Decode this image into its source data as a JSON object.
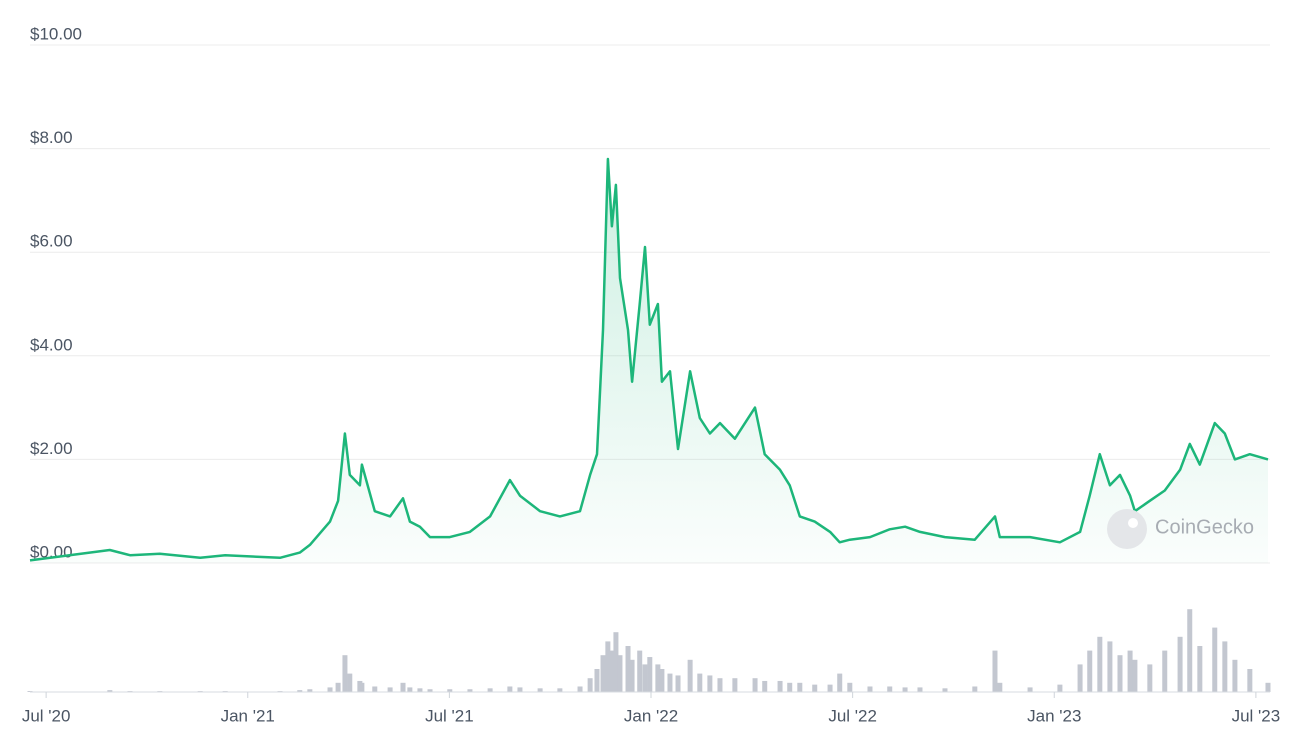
{
  "chart_data": {
    "type": "line",
    "watermark": "CoinGecko",
    "x": [
      2020.46,
      2020.658,
      2020.708,
      2020.782,
      2020.882,
      2020.944,
      2021.08,
      2021.129,
      2021.154,
      2021.204,
      2021.224,
      2021.241,
      2021.253,
      2021.278,
      2021.283,
      2021.315,
      2021.353,
      2021.385,
      2021.402,
      2021.427,
      2021.452,
      2021.501,
      2021.551,
      2021.601,
      2021.65,
      2021.675,
      2021.725,
      2021.774,
      2021.824,
      2021.849,
      2021.866,
      2021.881,
      2021.893,
      2021.903,
      2021.913,
      2021.923,
      2021.943,
      2021.953,
      2021.972,
      2021.985,
      2021.997,
      2022.017,
      2022.027,
      2022.047,
      2022.067,
      2022.097,
      2022.121,
      2022.146,
      2022.171,
      2022.208,
      2022.258,
      2022.282,
      2022.32,
      2022.344,
      2022.369,
      2022.406,
      2022.444,
      2022.468,
      2022.493,
      2022.543,
      2022.592,
      2022.63,
      2022.667,
      2022.729,
      2022.803,
      2022.853,
      2022.865,
      2022.94,
      2023.014,
      2023.064,
      2023.088,
      2023.113,
      2023.138,
      2023.163,
      2023.188,
      2023.2,
      2023.237,
      2023.274,
      2023.312,
      2023.336,
      2023.361,
      2023.398,
      2023.423,
      2023.448,
      2023.485,
      2023.53
    ],
    "series": [
      {
        "color": "#1db67a",
        "values": [
          0.05,
          0.25,
          0.15,
          0.18,
          0.1,
          0.15,
          0.1,
          0.2,
          0.35,
          0.8,
          1.2,
          2.5,
          1.7,
          1.5,
          1.9,
          1.0,
          0.9,
          1.25,
          0.8,
          0.7,
          0.5,
          0.5,
          0.6,
          0.9,
          1.6,
          1.3,
          1.0,
          0.9,
          1.0,
          1.7,
          2.1,
          4.5,
          7.8,
          6.5,
          7.3,
          5.5,
          4.5,
          3.5,
          5.0,
          6.1,
          4.6,
          5.0,
          3.5,
          3.7,
          2.2,
          3.7,
          2.8,
          2.5,
          2.7,
          2.4,
          3.0,
          2.1,
          1.8,
          1.5,
          0.9,
          0.8,
          0.6,
          0.4,
          0.45,
          0.5,
          0.65,
          0.7,
          0.6,
          0.5,
          0.45,
          0.9,
          0.5,
          0.5,
          0.4,
          0.6,
          1.3,
          2.1,
          1.5,
          1.7,
          1.3,
          1.0,
          1.2,
          1.4,
          1.8,
          2.3,
          1.9,
          2.7,
          2.5,
          2.0,
          2.1,
          2.0
        ]
      }
    ],
    "volume": {
      "color": "#c3c7d0",
      "axis": "y2",
      "values": [
        1,
        2,
        1,
        1,
        1,
        1,
        1,
        2,
        3,
        5,
        10,
        40,
        20,
        12,
        10,
        6,
        5,
        10,
        5,
        4,
        3,
        3,
        3,
        4,
        6,
        5,
        4,
        4,
        6,
        15,
        25,
        40,
        55,
        45,
        65,
        40,
        50,
        35,
        45,
        30,
        38,
        30,
        25,
        20,
        18,
        35,
        20,
        18,
        15,
        15,
        15,
        12,
        12,
        10,
        10,
        8,
        8,
        20,
        10,
        6,
        6,
        5,
        5,
        4,
        6,
        45,
        10,
        5,
        8,
        30,
        45,
        60,
        55,
        40,
        45,
        35,
        30,
        45,
        60,
        90,
        50,
        70,
        55,
        35,
        25,
        10
      ]
    },
    "xlim": [
      2020.46,
      2023.535
    ],
    "xticks": [
      {
        "value": 2020.5,
        "label": "Jul '20"
      },
      {
        "value": 2021.0,
        "label": "Jan '21"
      },
      {
        "value": 2021.5,
        "label": "Jul '21"
      },
      {
        "value": 2022.0,
        "label": "Jan '22"
      },
      {
        "value": 2022.5,
        "label": "Jul '22"
      },
      {
        "value": 2023.0,
        "label": "Jan '23"
      },
      {
        "value": 2023.5,
        "label": "Jul '23"
      }
    ],
    "ylim": [
      0,
      10
    ],
    "yticks": [
      {
        "value": 0,
        "label": "$0.00"
      },
      {
        "value": 2,
        "label": "$2.00"
      },
      {
        "value": 4,
        "label": "$4.00"
      },
      {
        "value": 6,
        "label": "$6.00"
      },
      {
        "value": 8,
        "label": "$8.00"
      },
      {
        "value": 10,
        "label": "$10.00"
      }
    ],
    "y2lim": [
      0,
      100
    ],
    "grid": true
  }
}
